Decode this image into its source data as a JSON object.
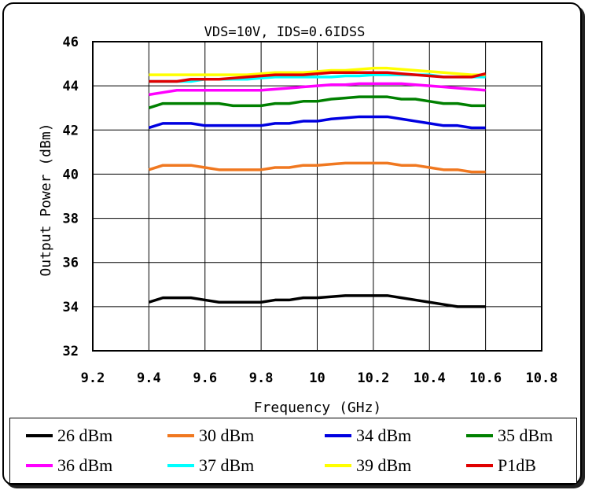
{
  "chart_data": {
    "type": "line",
    "title": "VDS=10V,  IDS=0.6IDSS",
    "xlabel": "Frequency  (GHz)",
    "ylabel": "Output Power  (dBm)",
    "xlim": [
      9.2,
      10.8
    ],
    "ylim": [
      32,
      46
    ],
    "xticks": [
      9.2,
      9.4,
      9.6,
      9.8,
      10,
      10.2,
      10.4,
      10.6,
      10.8
    ],
    "xtick_labels": [
      "9.2",
      "9.4",
      "9.6",
      "9.8",
      "10",
      "10.2",
      "10.4",
      "10.6",
      "10.8"
    ],
    "yticks": [
      32,
      34,
      36,
      38,
      40,
      42,
      44,
      46
    ],
    "ytick_labels": [
      "32",
      "34",
      "36",
      "38",
      "40",
      "42",
      "44",
      "46"
    ],
    "grid": true,
    "legend_position": "bottom",
    "x": [
      9.4,
      9.45,
      9.5,
      9.55,
      9.6,
      9.65,
      9.7,
      9.75,
      9.8,
      9.85,
      9.9,
      9.95,
      10.0,
      10.05,
      10.1,
      10.15,
      10.2,
      10.25,
      10.3,
      10.35,
      10.4,
      10.45,
      10.5,
      10.55,
      10.6
    ],
    "series": [
      {
        "name": "26 dBm",
        "color": "#000000",
        "values": [
          34.2,
          34.4,
          34.4,
          34.4,
          34.3,
          34.2,
          34.2,
          34.2,
          34.2,
          34.3,
          34.3,
          34.4,
          34.4,
          34.45,
          34.5,
          34.5,
          34.5,
          34.5,
          34.4,
          34.3,
          34.2,
          34.1,
          34.0,
          34.0,
          34.0
        ]
      },
      {
        "name": "30 dBm",
        "color": "#f07820",
        "values": [
          40.2,
          40.4,
          40.4,
          40.4,
          40.3,
          40.2,
          40.2,
          40.2,
          40.2,
          40.3,
          40.3,
          40.4,
          40.4,
          40.45,
          40.5,
          40.5,
          40.5,
          40.5,
          40.4,
          40.4,
          40.3,
          40.2,
          40.2,
          40.1,
          40.1
        ]
      },
      {
        "name": "34 dBm",
        "color": "#0000e0",
        "values": [
          42.1,
          42.3,
          42.3,
          42.3,
          42.2,
          42.2,
          42.2,
          42.2,
          42.2,
          42.3,
          42.3,
          42.4,
          42.4,
          42.5,
          42.55,
          42.6,
          42.6,
          42.6,
          42.5,
          42.4,
          42.3,
          42.2,
          42.2,
          42.1,
          42.1
        ]
      },
      {
        "name": "35 dBm",
        "color": "#008000",
        "values": [
          43.0,
          43.2,
          43.2,
          43.2,
          43.2,
          43.2,
          43.1,
          43.1,
          43.1,
          43.2,
          43.2,
          43.3,
          43.3,
          43.4,
          43.45,
          43.5,
          43.5,
          43.5,
          43.4,
          43.4,
          43.3,
          43.2,
          43.2,
          43.1,
          43.1
        ]
      },
      {
        "name": "36 dBm",
        "color": "#ff00ff",
        "values": [
          43.6,
          43.7,
          43.8,
          43.8,
          43.8,
          43.8,
          43.8,
          43.8,
          43.8,
          43.85,
          43.9,
          43.95,
          44.0,
          44.05,
          44.05,
          44.1,
          44.1,
          44.1,
          44.1,
          44.05,
          44.0,
          43.95,
          43.9,
          43.85,
          43.8
        ]
      },
      {
        "name": "37 dBm",
        "color": "#00ffff",
        "values": [
          44.2,
          44.2,
          44.2,
          44.2,
          44.3,
          44.3,
          44.3,
          44.3,
          44.35,
          44.4,
          44.4,
          44.4,
          44.4,
          44.4,
          44.45,
          44.45,
          44.5,
          44.5,
          44.5,
          44.5,
          44.5,
          44.4,
          44.4,
          44.4,
          44.4
        ]
      },
      {
        "name": "39 dBm",
        "color": "#ffff00",
        "values": [
          44.5,
          44.5,
          44.5,
          44.5,
          44.5,
          44.5,
          44.5,
          44.5,
          44.55,
          44.6,
          44.6,
          44.6,
          44.65,
          44.7,
          44.7,
          44.75,
          44.8,
          44.8,
          44.75,
          44.7,
          44.65,
          44.6,
          44.55,
          44.5,
          44.5
        ]
      },
      {
        "name": "P1dB",
        "color": "#e00000",
        "values": [
          44.2,
          44.2,
          44.2,
          44.3,
          44.3,
          44.3,
          44.35,
          44.4,
          44.45,
          44.5,
          44.5,
          44.5,
          44.55,
          44.6,
          44.6,
          44.6,
          44.6,
          44.6,
          44.55,
          44.5,
          44.45,
          44.4,
          44.4,
          44.4,
          44.55
        ]
      }
    ]
  }
}
